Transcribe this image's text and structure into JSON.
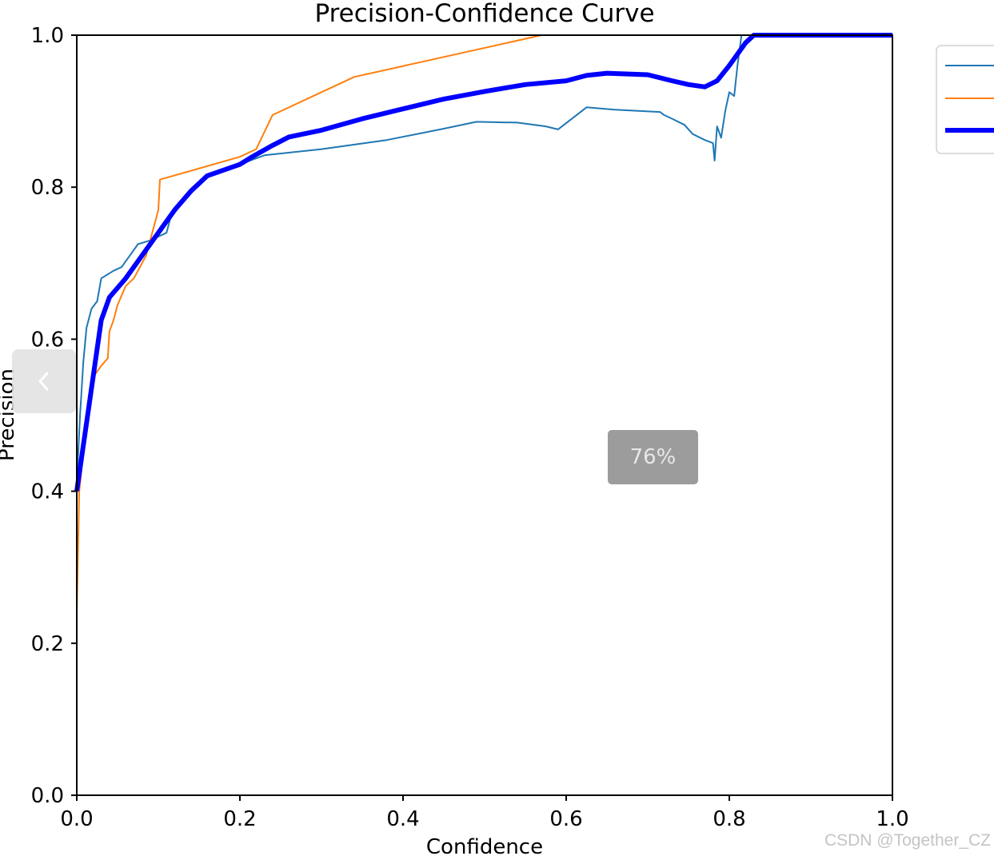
{
  "chart_data": {
    "type": "line",
    "title": "Precision-Confidence Curve",
    "xlabel": "Confidence",
    "ylabel": "Precision",
    "xlim": [
      0,
      1
    ],
    "ylim": [
      0,
      1
    ],
    "xticks": [
      "0.0",
      "0.2",
      "0.4",
      "0.6",
      "0.8",
      "1.0"
    ],
    "yticks": [
      "0.0",
      "0.2",
      "0.4",
      "0.6",
      "0.8",
      "1.0"
    ],
    "grid": false,
    "legend": "top-right (cropped, labels not visible)",
    "series": [
      {
        "color": "#1f77b4",
        "width": 2,
        "points": [
          [
            0.0,
            0.41
          ],
          [
            0.004,
            0.5
          ],
          [
            0.008,
            0.57
          ],
          [
            0.012,
            0.615
          ],
          [
            0.018,
            0.64
          ],
          [
            0.025,
            0.65
          ],
          [
            0.03,
            0.68
          ],
          [
            0.045,
            0.69
          ],
          [
            0.055,
            0.695
          ],
          [
            0.065,
            0.71
          ],
          [
            0.075,
            0.725
          ],
          [
            0.09,
            0.73
          ],
          [
            0.1,
            0.735
          ],
          [
            0.11,
            0.74
          ],
          [
            0.115,
            0.76
          ],
          [
            0.13,
            0.78
          ],
          [
            0.145,
            0.8
          ],
          [
            0.16,
            0.815
          ],
          [
            0.2,
            0.83
          ],
          [
            0.23,
            0.842
          ],
          [
            0.3,
            0.85
          ],
          [
            0.38,
            0.862
          ],
          [
            0.45,
            0.877
          ],
          [
            0.49,
            0.886
          ],
          [
            0.54,
            0.885
          ],
          [
            0.575,
            0.88
          ],
          [
            0.59,
            0.876
          ],
          [
            0.625,
            0.905
          ],
          [
            0.66,
            0.902
          ],
          [
            0.715,
            0.899
          ],
          [
            0.72,
            0.895
          ],
          [
            0.73,
            0.89
          ],
          [
            0.745,
            0.882
          ],
          [
            0.755,
            0.87
          ],
          [
            0.77,
            0.862
          ],
          [
            0.78,
            0.858
          ],
          [
            0.782,
            0.835
          ],
          [
            0.785,
            0.88
          ],
          [
            0.79,
            0.865
          ],
          [
            0.795,
            0.9
          ],
          [
            0.8,
            0.925
          ],
          [
            0.806,
            0.92
          ],
          [
            0.81,
            0.96
          ],
          [
            0.815,
            1.0
          ],
          [
            1.0,
            1.0
          ]
        ]
      },
      {
        "color": "#ff7f0e",
        "width": 2,
        "points": [
          [
            0.0,
            0.24
          ],
          [
            0.003,
            0.4
          ],
          [
            0.01,
            0.47
          ],
          [
            0.02,
            0.55
          ],
          [
            0.03,
            0.565
          ],
          [
            0.038,
            0.575
          ],
          [
            0.04,
            0.61
          ],
          [
            0.045,
            0.625
          ],
          [
            0.05,
            0.645
          ],
          [
            0.06,
            0.67
          ],
          [
            0.07,
            0.68
          ],
          [
            0.085,
            0.71
          ],
          [
            0.095,
            0.75
          ],
          [
            0.1,
            0.77
          ],
          [
            0.102,
            0.81
          ],
          [
            0.2,
            0.84
          ],
          [
            0.22,
            0.85
          ],
          [
            0.24,
            0.895
          ],
          [
            0.34,
            0.945
          ],
          [
            0.57,
            1.0
          ],
          [
            1.0,
            1.0
          ]
        ]
      },
      {
        "color": "#0000ff",
        "width": 6,
        "points": [
          [
            0.0,
            0.4
          ],
          [
            0.01,
            0.475
          ],
          [
            0.02,
            0.55
          ],
          [
            0.03,
            0.625
          ],
          [
            0.04,
            0.655
          ],
          [
            0.06,
            0.68
          ],
          [
            0.08,
            0.71
          ],
          [
            0.1,
            0.74
          ],
          [
            0.12,
            0.77
          ],
          [
            0.14,
            0.795
          ],
          [
            0.16,
            0.815
          ],
          [
            0.2,
            0.83
          ],
          [
            0.215,
            0.84
          ],
          [
            0.24,
            0.855
          ],
          [
            0.26,
            0.866
          ],
          [
            0.3,
            0.875
          ],
          [
            0.35,
            0.89
          ],
          [
            0.4,
            0.903
          ],
          [
            0.45,
            0.916
          ],
          [
            0.5,
            0.926
          ],
          [
            0.55,
            0.935
          ],
          [
            0.6,
            0.94
          ],
          [
            0.625,
            0.947
          ],
          [
            0.65,
            0.95
          ],
          [
            0.7,
            0.948
          ],
          [
            0.73,
            0.94
          ],
          [
            0.75,
            0.935
          ],
          [
            0.77,
            0.932
          ],
          [
            0.785,
            0.94
          ],
          [
            0.8,
            0.96
          ],
          [
            0.82,
            0.99
          ],
          [
            0.83,
            1.0
          ],
          [
            1.0,
            1.0
          ]
        ]
      }
    ]
  },
  "ui": {
    "prev_icon": "chevron-left-icon",
    "zoom_level": "76%",
    "watermark": "CSDN @Together_CZ"
  }
}
